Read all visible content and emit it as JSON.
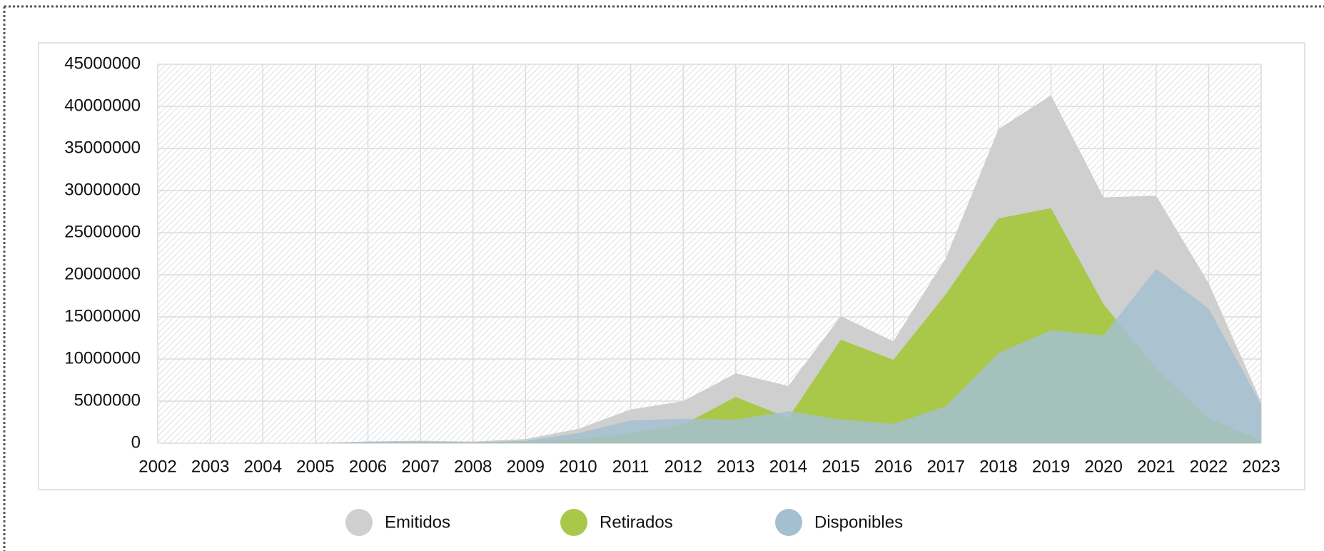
{
  "chart_data": {
    "type": "area",
    "categories": [
      "2002",
      "2003",
      "2004",
      "2005",
      "2006",
      "2007",
      "2008",
      "2009",
      "2010",
      "2011",
      "2012",
      "2013",
      "2014",
      "2015",
      "2016",
      "2017",
      "2018",
      "2019",
      "2020",
      "2021",
      "2022",
      "2023"
    ],
    "series": [
      {
        "name": "Emitidos",
        "color": "#cfcfcf",
        "values": [
          0,
          0,
          0,
          0,
          200000,
          300000,
          200000,
          500000,
          1700000,
          4000000,
          5000000,
          8300000,
          6800000,
          15100000,
          12100000,
          22000000,
          37300000,
          41300000,
          29200000,
          29400000,
          19000000,
          4900000
        ]
      },
      {
        "name": "Retirados",
        "color": "#a9c84a",
        "values": [
          0,
          0,
          0,
          0,
          0,
          100000,
          100000,
          200000,
          500000,
          1200000,
          2200000,
          5500000,
          3000000,
          12300000,
          9900000,
          17700000,
          26700000,
          27900000,
          16500000,
          8900000,
          3000000,
          300000
        ]
      },
      {
        "name": "Disponibles",
        "color": "#a4bfd0",
        "values": [
          0,
          0,
          0,
          0,
          200000,
          200000,
          100000,
          300000,
          1200000,
          2700000,
          2900000,
          2800000,
          3800000,
          2800000,
          2300000,
          4400000,
          10700000,
          13400000,
          12800000,
          20700000,
          16000000,
          4600000
        ]
      }
    ],
    "ylim": [
      0,
      45000000
    ],
    "yticks": [
      0,
      5000000,
      10000000,
      15000000,
      20000000,
      25000000,
      30000000,
      35000000,
      40000000,
      45000000
    ],
    "grid": true,
    "legend": "bottom"
  }
}
